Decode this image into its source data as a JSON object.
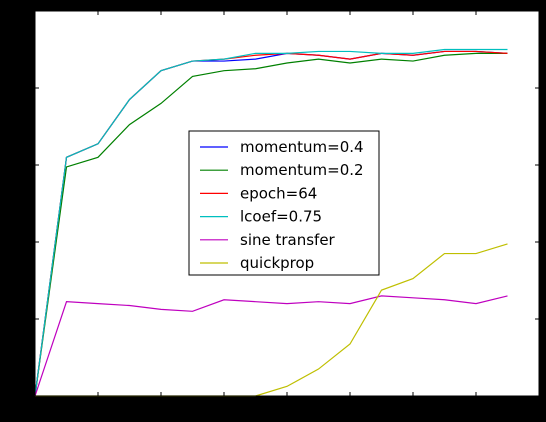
{
  "chart_data": {
    "type": "line",
    "title": "",
    "xlabel": "",
    "ylabel": "",
    "xlim": [
      0,
      16
    ],
    "ylim": [
      0.0,
      1.0
    ],
    "x_ticks": [
      "0",
      "2",
      "4",
      "6",
      "8",
      "10",
      "12",
      "14",
      "16"
    ],
    "y_ticks": [
      "0.0",
      "0.2",
      "0.4",
      "0.6",
      "0.8",
      "1.0"
    ],
    "grid": false,
    "legend_position": "center",
    "x": [
      0,
      1,
      2,
      3,
      4,
      5,
      6,
      7,
      8,
      9,
      10,
      11,
      12,
      13,
      14,
      15
    ],
    "series": [
      {
        "name": "momentum=0.4",
        "color": "#0000ff",
        "values": [
          0.0,
          0.62,
          0.655,
          0.77,
          0.845,
          0.87,
          0.87,
          0.875,
          0.89,
          0.885,
          0.875,
          0.89,
          0.885,
          0.895,
          0.895,
          0.89
        ]
      },
      {
        "name": "momentum=0.2",
        "color": "#008000",
        "values": [
          0.0,
          0.595,
          0.62,
          0.705,
          0.76,
          0.83,
          0.845,
          0.85,
          0.865,
          0.875,
          0.865,
          0.875,
          0.87,
          0.885,
          0.89,
          0.89
        ]
      },
      {
        "name": "epoch=64",
        "color": "#ff0000",
        "values": [
          0.0,
          0.62,
          0.655,
          0.77,
          0.845,
          0.87,
          0.875,
          0.885,
          0.89,
          0.885,
          0.875,
          0.89,
          0.885,
          0.895,
          0.895,
          0.89
        ]
      },
      {
        "name": "lcoef=0.75",
        "color": "#00bfbf",
        "values": [
          0.0,
          0.62,
          0.655,
          0.77,
          0.845,
          0.87,
          0.875,
          0.89,
          0.89,
          0.895,
          0.895,
          0.89,
          0.89,
          0.9,
          0.9,
          0.9
        ]
      },
      {
        "name": "sine transfer",
        "color": "#bf00bf",
        "values": [
          0.0,
          0.245,
          0.24,
          0.235,
          0.225,
          0.22,
          0.25,
          0.245,
          0.24,
          0.245,
          0.24,
          0.26,
          0.255,
          0.25,
          0.24,
          0.26
        ]
      },
      {
        "name": "quickprop",
        "color": "#bfbf00",
        "values": [
          0.0,
          0.0,
          0.0,
          0.0,
          0.0,
          0.0,
          0.0,
          0.0,
          0.025,
          0.07,
          0.135,
          0.275,
          0.305,
          0.37,
          0.37,
          0.395
        ]
      }
    ]
  }
}
